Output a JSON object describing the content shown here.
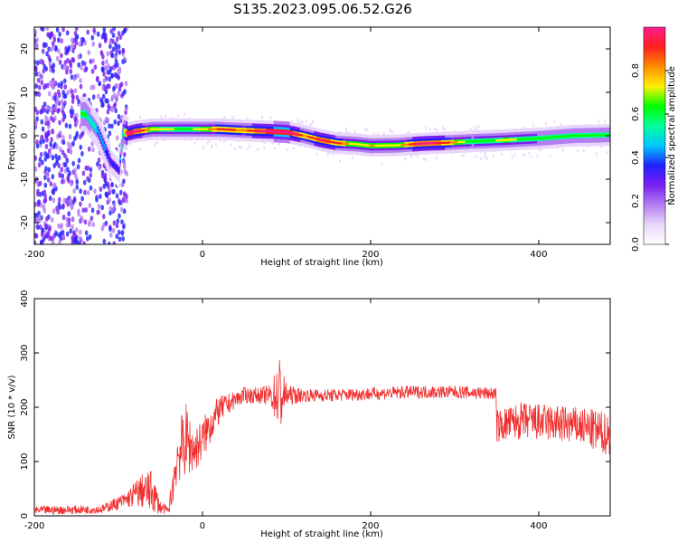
{
  "title": "S135.2023.095.06.52.G26",
  "colors": {
    "snr_line": "#f03030",
    "colormap": [
      "#ffffff",
      "#e8d6fa",
      "#b47ef2",
      "#7a1ff0",
      "#2020ff",
      "#00c8ff",
      "#00ff9a",
      "#00ff00",
      "#fff000",
      "#ff8c00",
      "#ff2020",
      "#ff1a8c"
    ]
  },
  "chart_data": [
    {
      "type": "heatmap",
      "xlabel": "Height of straight line (km)",
      "ylabel": "Frequency (Hz)",
      "xlim": [
        -200,
        485
      ],
      "ylim": [
        -25,
        25
      ],
      "xticks": [
        -200,
        0,
        200,
        400
      ],
      "yticks": [
        -20,
        -10,
        0,
        10,
        20
      ],
      "ridge": {
        "x": [
          -140,
          -125,
          -110,
          -100,
          -95,
          -90,
          -80,
          -60,
          -20,
          0,
          20,
          50,
          80,
          100,
          120,
          140,
          160,
          180,
          200,
          230,
          260,
          290,
          320,
          360,
          400,
          440,
          485
        ],
        "frequency": [
          5,
          1,
          -6,
          -8,
          1,
          0.5,
          1,
          1.5,
          1.5,
          1.5,
          1.5,
          1.2,
          1.0,
          0.8,
          0,
          -1,
          -1.7,
          -1.9,
          -2.3,
          -2.2,
          -1.8,
          -1.6,
          -1.3,
          -1.0,
          -0.6,
          0,
          0.2
        ],
        "normalized_amplitude": [
          0.5,
          0.4,
          0.3,
          0.3,
          0.5,
          0.9,
          0.85,
          0.6,
          0.55,
          0.6,
          0.75,
          0.7,
          0.9,
          0.95,
          0.7,
          0.8,
          0.75,
          0.6,
          0.65,
          0.6,
          0.85,
          0.75,
          0.5,
          0.6,
          0.5,
          0.5,
          0.5
        ]
      },
      "colorbar": {
        "label": "Normalized spectral amplitude",
        "range": [
          0,
          1
        ],
        "ticks": [
          "0.0",
          "0.2",
          "0.4",
          "0.6",
          "0.8"
        ]
      }
    },
    {
      "type": "line",
      "xlabel": "Height of straight line (km)",
      "ylabel": "SNR (10 * v/v)",
      "xlim": [
        -200,
        485
      ],
      "ylim": [
        0,
        400
      ],
      "xticks": [
        -200,
        0,
        200,
        400
      ],
      "yticks": [
        0,
        100,
        200,
        300,
        400
      ],
      "series": [
        {
          "envelope_x": [
            -200,
            -120,
            -90,
            -75,
            -60,
            -50,
            -40,
            -35,
            -30,
            -20,
            -10,
            0,
            10,
            20,
            30,
            40,
            50,
            60,
            70,
            80,
            88,
            92,
            96,
            100,
            120,
            150,
            200,
            250,
            300,
            349,
            350,
            380,
            420,
            450,
            470,
            485
          ],
          "mean": [
            10,
            12,
            30,
            45,
            45,
            15,
            10,
            60,
            110,
            140,
            120,
            140,
            170,
            195,
            205,
            215,
            222,
            222,
            222,
            222,
            222,
            222,
            222,
            222,
            222,
            222,
            225,
            228,
            228,
            225,
            165,
            175,
            170,
            165,
            155,
            150
          ],
          "spread": [
            8,
            8,
            15,
            30,
            40,
            12,
            6,
            40,
            50,
            70,
            40,
            40,
            35,
            25,
            20,
            15,
            15,
            15,
            15,
            20,
            50,
            80,
            45,
            20,
            12,
            12,
            12,
            12,
            12,
            12,
            30,
            35,
            35,
            35,
            40,
            40
          ]
        }
      ]
    }
  ]
}
